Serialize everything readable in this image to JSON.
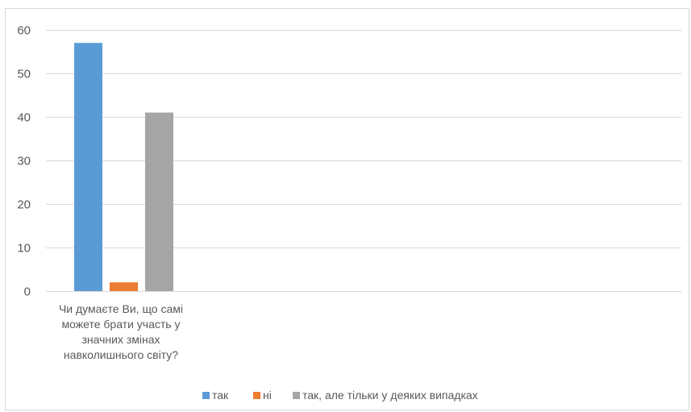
{
  "chart_data": {
    "type": "bar",
    "categories": [
      "Чи думаєте Ви, що  самі можете брати участь у значних змінах навколишнього світу?"
    ],
    "category_lines": [
      [
        "Чи думаєте Ви, що  самі",
        "можете брати участь у",
        "значних змінах",
        "навколишнього світу?"
      ]
    ],
    "series": [
      {
        "name": "так",
        "values": [
          57
        ],
        "color": "#5b9bd5"
      },
      {
        "name": "ні",
        "values": [
          2
        ],
        "color": "#ed7d31"
      },
      {
        "name": "так, але тільки у деяких випадках",
        "values": [
          41
        ],
        "color": "#a5a5a5"
      }
    ],
    "ylim": [
      0,
      60
    ],
    "yticks": [
      0,
      10,
      20,
      30,
      40,
      50,
      60
    ],
    "grid": true,
    "legend_position": "bottom-center",
    "title": "",
    "xlabel": "",
    "ylabel": ""
  }
}
